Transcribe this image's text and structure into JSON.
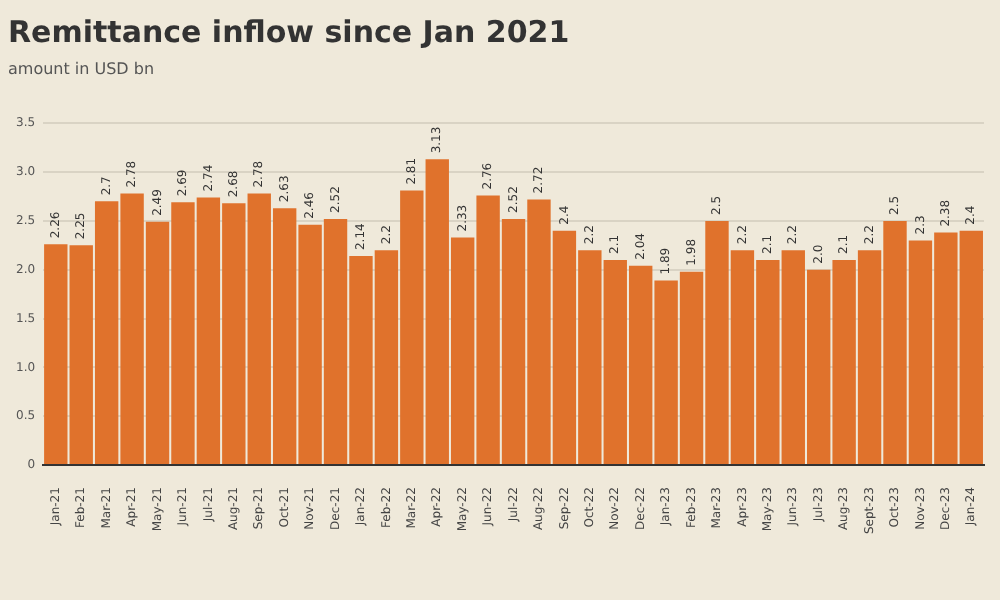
{
  "chart_data": {
    "type": "bar",
    "title": "Remittance inflow since Jan 2021",
    "subtitle": "amount in USD bn",
    "categories": [
      "Jan-21",
      "Feb-21",
      "Mar-21",
      "Apr-21",
      "May-21",
      "Jun-21",
      "Jul-21",
      "Aug-21",
      "Sep-21",
      "Oct-21",
      "Nov-21",
      "Dec-21",
      "Jan-22",
      "Feb-22",
      "Mar-22",
      "Apr-22",
      "May-22",
      "Jun-22",
      "Jul-22",
      "Aug-22",
      "Sep-22",
      "Oct-22",
      "Nov-22",
      "Dec-22",
      "Jan-23",
      "Feb-23",
      "Mar-23",
      "Apr-23",
      "May-23",
      "Jun-23",
      "Jul-23",
      "Aug-23",
      "Sept-23",
      "Oct-23",
      "Nov-23",
      "Dec-23",
      "Jan-24"
    ],
    "values": [
      2.26,
      2.25,
      2.7,
      2.78,
      2.49,
      2.69,
      2.74,
      2.68,
      2.78,
      2.63,
      2.46,
      2.52,
      2.14,
      2.2,
      2.81,
      3.13,
      2.33,
      2.76,
      2.52,
      2.72,
      2.4,
      2.2,
      2.1,
      2.04,
      1.89,
      1.98,
      2.5,
      2.2,
      2.1,
      2.2,
      2.0,
      2.1,
      2.2,
      2.5,
      2.3,
      2.38,
      2.4
    ],
    "value_labels": [
      "2.26",
      "2.25",
      "2.7",
      "2.78",
      "2.49",
      "2.69",
      "2.74",
      "2.68",
      "2.78",
      "2.63",
      "2.46",
      "2.52",
      "2.14",
      "2.2",
      "2.81",
      "3.13",
      "2.33",
      "2.76",
      "2.52",
      "2.72",
      "2.4",
      "2.2",
      "2.1",
      "2.04",
      "1.89",
      "1.98",
      "2.5",
      "2.2",
      "2.1",
      "2.2",
      "2.0",
      "2.1",
      "2.2",
      "2.5",
      "2.3",
      "2.38",
      "2.4"
    ],
    "color": "#e0722c",
    "ylim": [
      0,
      3.5
    ],
    "yticks": [
      0,
      {
        "value": 0.5,
        "label": "0.5"
      },
      {
        "value": 1,
        "label": "1.0"
      },
      {
        "value": 1.5,
        "label": "1.5"
      },
      {
        "value": 2,
        "label": "2.0"
      },
      {
        "value": 2.5,
        "label": "2.5"
      },
      {
        "value": 3,
        "label": "3.0"
      },
      {
        "value": 3.5,
        "label": "3.5"
      }
    ],
    "grid": "y",
    "legend": false
  }
}
